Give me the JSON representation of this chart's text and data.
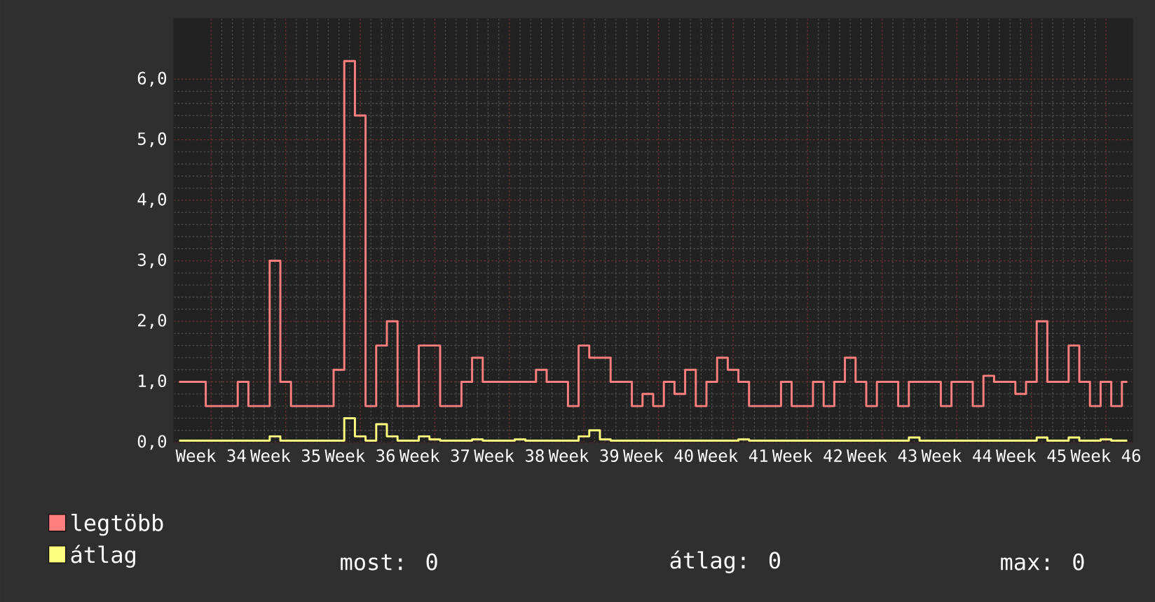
{
  "chart_data": {
    "type": "step",
    "categories": [
      null,
      null,
      null,
      "Week 34",
      null,
      null,
      null,
      null,
      null,
      null,
      "Week 35",
      null,
      null,
      null,
      null,
      null,
      null,
      "Week 36",
      null,
      null,
      null,
      null,
      null,
      null,
      "Week 37",
      null,
      null,
      null,
      null,
      null,
      null,
      "Week 38",
      null,
      null,
      null,
      null,
      null,
      null,
      "Week 39",
      null,
      null,
      null,
      null,
      null,
      null,
      "Week 40",
      null,
      null,
      null,
      null,
      null,
      null,
      "Week 41",
      null,
      null,
      null,
      null,
      null,
      null,
      "Week 42",
      null,
      null,
      null,
      null,
      null,
      null,
      "Week 43",
      null,
      null,
      null,
      null,
      null,
      null,
      "Week 44",
      null,
      null,
      null,
      null,
      null,
      null,
      "Week 45",
      null,
      null,
      null,
      null,
      null,
      null,
      "Week 46",
      null,
      null
    ],
    "ylim": [
      0,
      7
    ],
    "yticks": [
      {
        "value": 0,
        "label": "0,0"
      },
      {
        "value": 1,
        "label": "1,0"
      },
      {
        "value": 2,
        "label": "2,0"
      },
      {
        "value": 3,
        "label": "3,0"
      },
      {
        "value": 4,
        "label": "4,0"
      },
      {
        "value": 5,
        "label": "5,0"
      },
      {
        "value": 6,
        "label": "6,0"
      }
    ],
    "grid": true,
    "legend": "bottom",
    "series": [
      {
        "name": "legtöbb",
        "color": "#ff7f7f",
        "values": [
          1.0,
          1.0,
          1.0,
          0.6,
          0.6,
          0.6,
          1.0,
          0.6,
          0.6,
          3.0,
          1.0,
          0.6,
          0.6,
          0.6,
          0.6,
          1.2,
          6.3,
          5.4,
          0.6,
          1.6,
          2.0,
          0.6,
          0.6,
          1.6,
          1.6,
          0.6,
          0.6,
          1.0,
          1.4,
          1.0,
          1.0,
          1.0,
          1.0,
          1.0,
          1.2,
          1.0,
          1.0,
          0.6,
          1.6,
          1.4,
          1.4,
          1.0,
          1.0,
          0.6,
          0.8,
          0.6,
          1.0,
          0.8,
          1.2,
          0.6,
          1.0,
          1.4,
          1.2,
          1.0,
          0.6,
          0.6,
          0.6,
          1.0,
          0.6,
          0.6,
          1.0,
          0.6,
          1.0,
          1.4,
          1.0,
          0.6,
          1.0,
          1.0,
          0.6,
          1.0,
          1.0,
          1.0,
          0.6,
          1.0,
          1.0,
          0.6,
          1.1,
          1.0,
          1.0,
          0.8,
          1.0,
          2.0,
          1.0,
          1.0,
          1.6,
          1.0,
          0.6,
          1.0,
          0.6,
          1.0
        ]
      },
      {
        "name": "átlag",
        "color": "#ffff7f",
        "values": [
          0.03,
          0.03,
          0.03,
          0.03,
          0.03,
          0.03,
          0.03,
          0.03,
          0.03,
          0.1,
          0.03,
          0.03,
          0.03,
          0.03,
          0.03,
          0.03,
          0.4,
          0.1,
          0.03,
          0.3,
          0.1,
          0.03,
          0.03,
          0.1,
          0.05,
          0.03,
          0.03,
          0.03,
          0.05,
          0.03,
          0.03,
          0.03,
          0.05,
          0.03,
          0.03,
          0.03,
          0.03,
          0.03,
          0.1,
          0.2,
          0.05,
          0.03,
          0.03,
          0.03,
          0.03,
          0.03,
          0.03,
          0.03,
          0.03,
          0.03,
          0.03,
          0.03,
          0.03,
          0.05,
          0.03,
          0.03,
          0.03,
          0.03,
          0.03,
          0.03,
          0.03,
          0.03,
          0.03,
          0.03,
          0.03,
          0.03,
          0.03,
          0.03,
          0.03,
          0.08,
          0.03,
          0.03,
          0.03,
          0.03,
          0.03,
          0.03,
          0.03,
          0.03,
          0.03,
          0.03,
          0.03,
          0.08,
          0.03,
          0.03,
          0.08,
          0.03,
          0.03,
          0.05,
          0.03,
          0.03
        ]
      }
    ],
    "annotations": [
      "most: 0",
      "átlag: 0",
      "max: 0"
    ]
  }
}
